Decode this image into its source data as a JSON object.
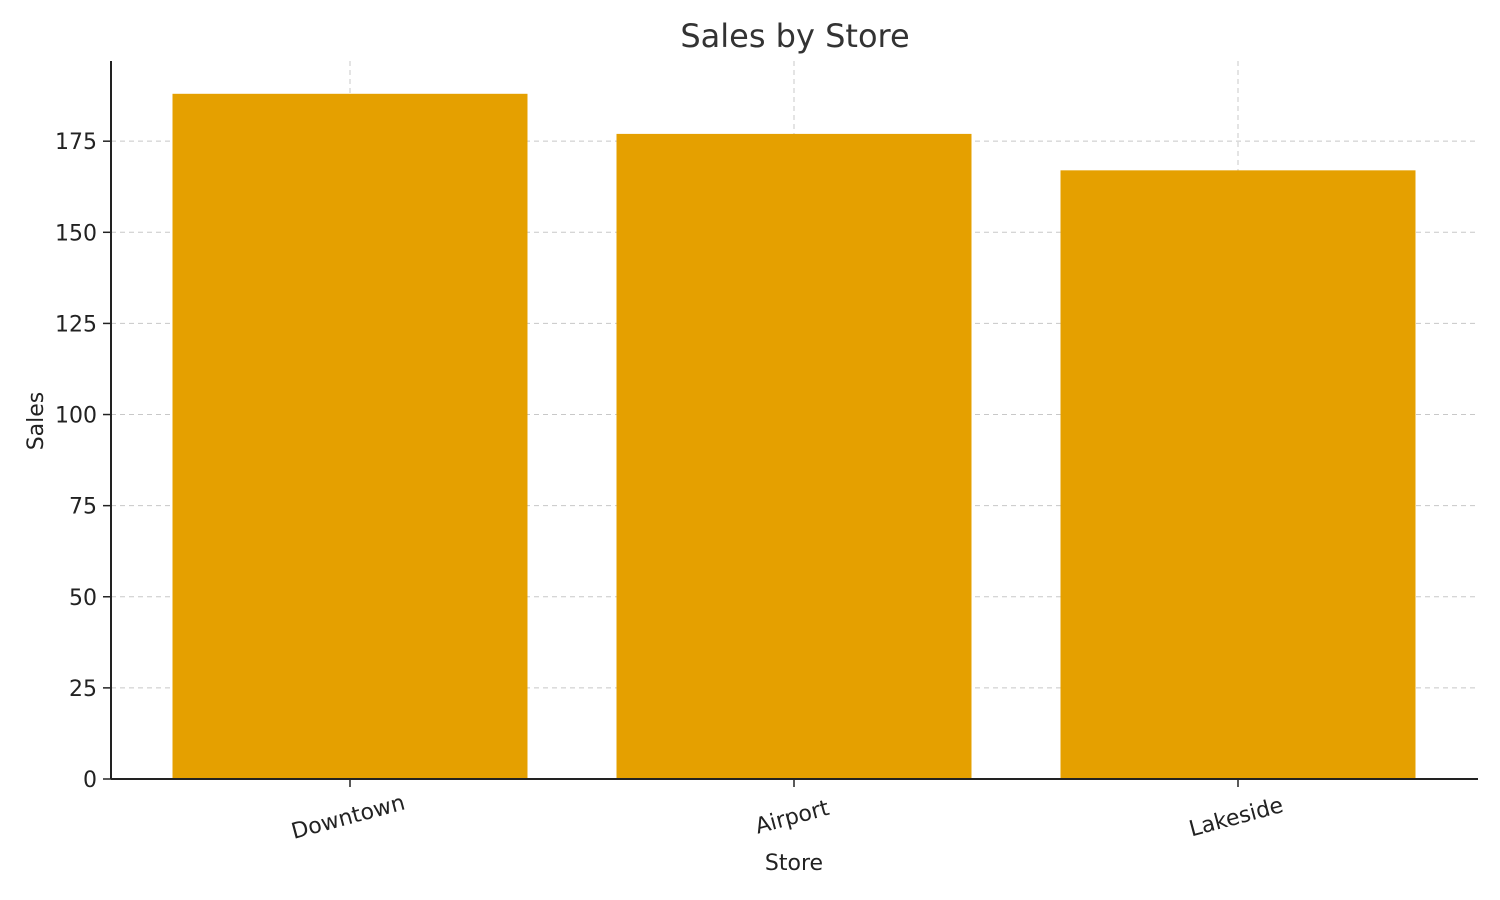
{
  "chart_data": {
    "type": "bar",
    "title": "Sales by Store",
    "xlabel": "Store",
    "ylabel": "Sales",
    "categories": [
      "Downtown",
      "Airport",
      "Lakeside"
    ],
    "values": [
      188,
      177,
      167
    ],
    "ylim": [
      0,
      197
    ],
    "yticks": [
      0,
      25,
      50,
      75,
      100,
      125,
      150,
      175
    ],
    "grid": true,
    "bar_color": "#E5A000"
  }
}
